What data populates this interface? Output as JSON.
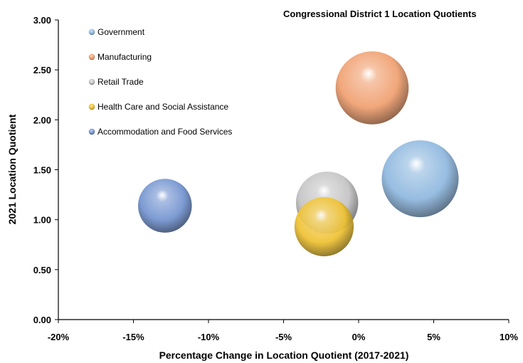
{
  "chart_data": {
    "type": "bubble",
    "title": "Congressional District 1 Location Quotients",
    "xlabel": "Percentage Change in Location Quotient (2017-2021)",
    "ylabel": "2021 Location Quotient",
    "xlim": [
      -20,
      10
    ],
    "ylim": [
      0,
      3
    ],
    "x_ticks": [
      "-20%",
      "-15%",
      "-10%",
      "-5%",
      "0%",
      "5%",
      "10%"
    ],
    "y_ticks": [
      "0.00",
      "0.50",
      "1.00",
      "1.50",
      "2.00",
      "2.50",
      "3.00"
    ],
    "grid": false,
    "legend_position": "top-left",
    "series": [
      {
        "name": "Government",
        "x": 4.1,
        "y": 1.41,
        "size": 1.0,
        "color": "#8fb8df"
      },
      {
        "name": "Manufacturing",
        "x": 0.9,
        "y": 2.32,
        "size": 0.95,
        "color": "#f0a070"
      },
      {
        "name": "Retail Trade",
        "x": -2.1,
        "y": 1.17,
        "size": 0.81,
        "color": "#c4c4c4"
      },
      {
        "name": "Health Care and Social Assistance",
        "x": -2.3,
        "y": 0.93,
        "size": 0.77,
        "color": "#efc233"
      },
      {
        "name": "Accommodation and Food Services",
        "x": -12.9,
        "y": 1.14,
        "size": 0.7,
        "color": "#7394d0"
      }
    ]
  }
}
